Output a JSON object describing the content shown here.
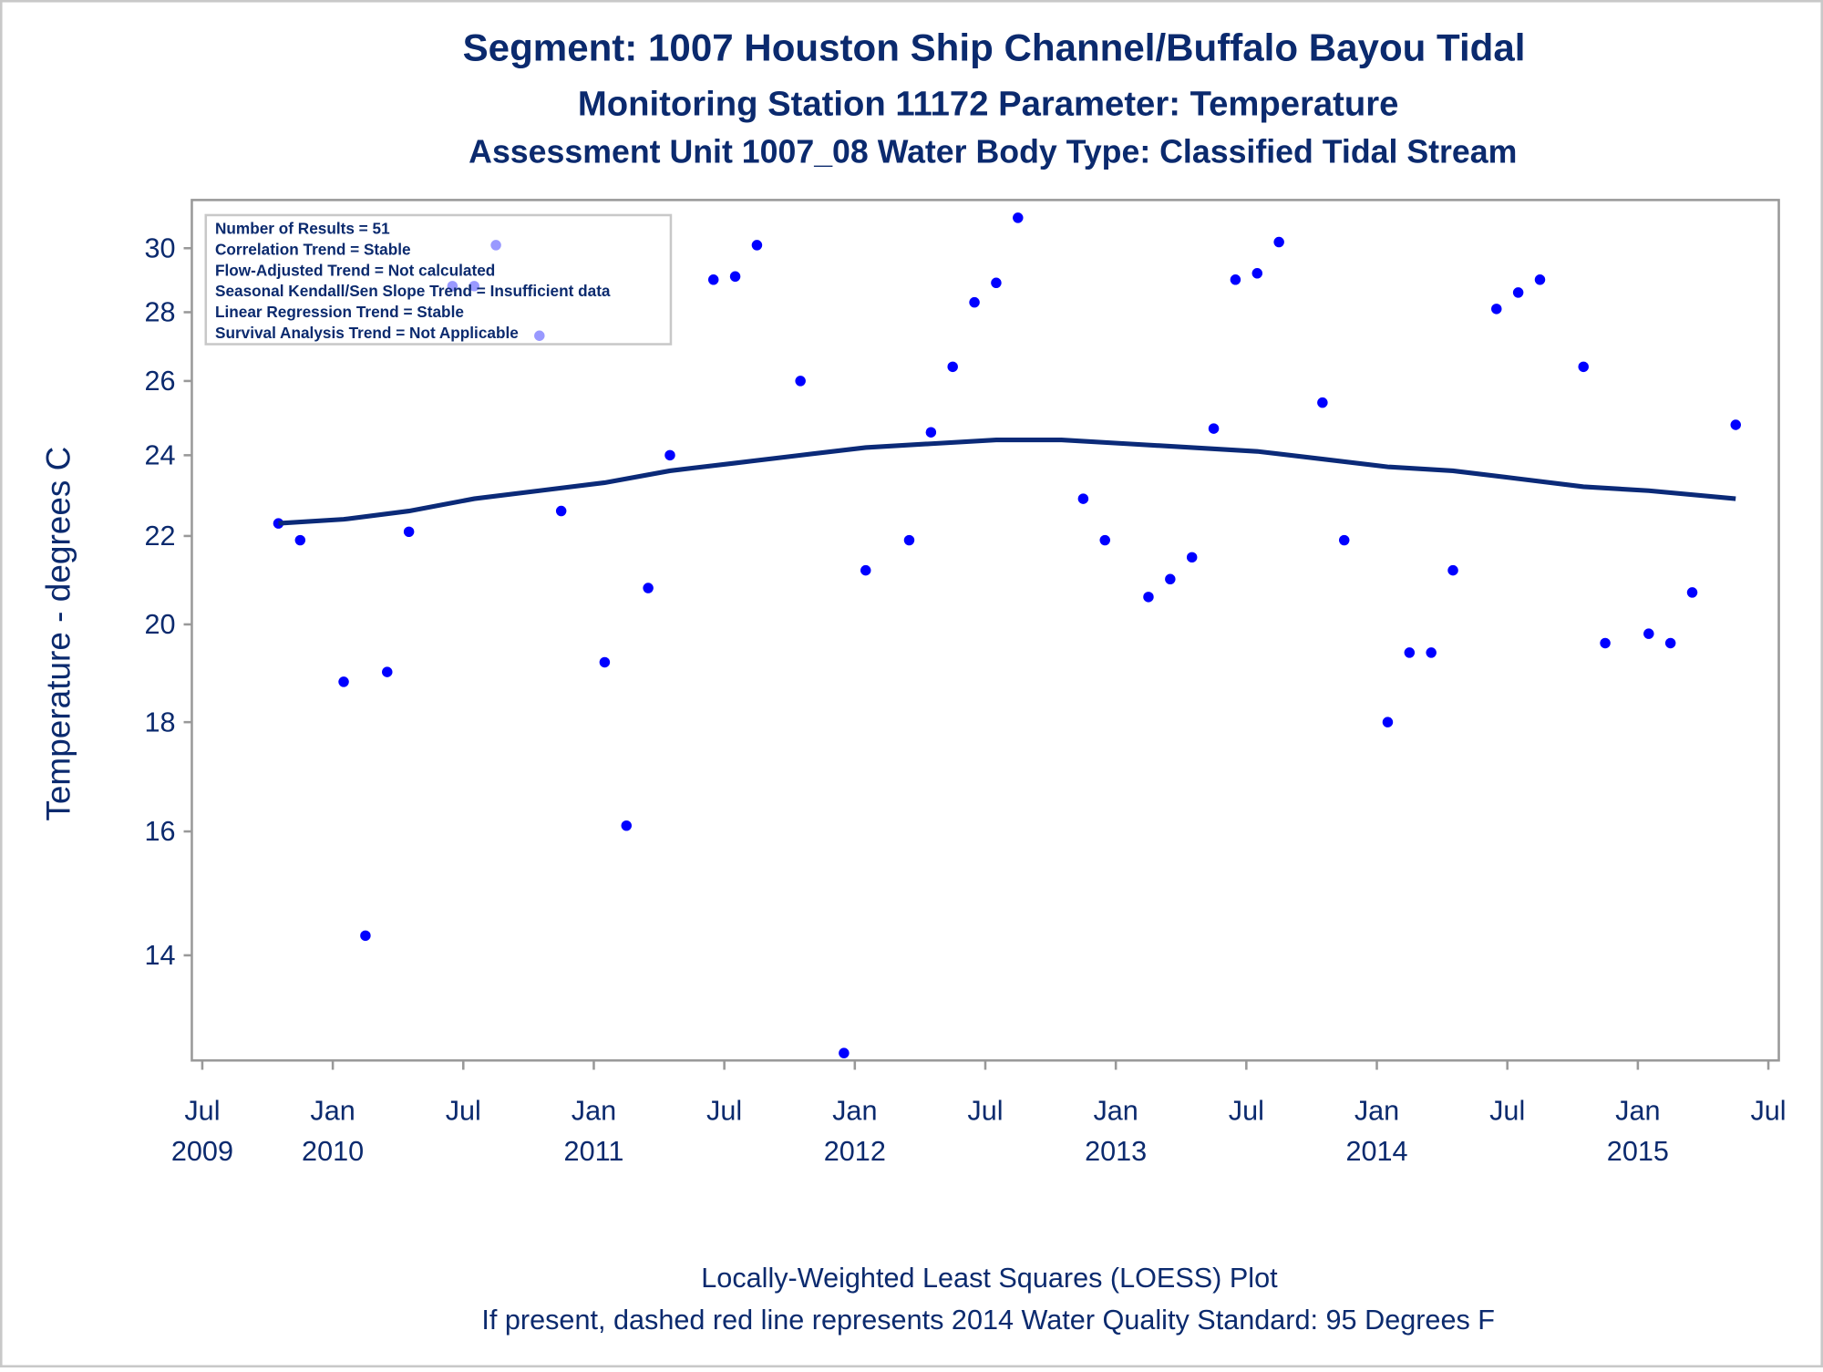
{
  "chart_data": {
    "type": "scatter",
    "titles": [
      "Segment: 1007  Houston Ship Channel/Buffalo Bayou Tidal",
      "Monitoring Station 11172 Parameter: Temperature",
      "Assessment Unit 1007_08   Water Body Type: Classified Tidal Stream"
    ],
    "y_label": "Temperature - degrees C",
    "annotations": [
      "Number of Results = 51",
      "Correlation Trend = Stable",
      "Flow-Adjusted Trend = Not calculated",
      "Seasonal Kendall/Sen Slope Trend = Insufficient data",
      "Linear Regression Trend = Stable",
      "Survival Analysis Trend = Not Applicable"
    ],
    "footnotes": [
      "Locally-Weighted Least Squares (LOESS) Plot",
      "If present, dashed red line represents 2014 Water Quality Standard: 95   Degrees F"
    ],
    "y_scale": "log",
    "ylim": [
      12.5,
      31.6
    ],
    "yticks": [
      14,
      16,
      18,
      20,
      22,
      24,
      26,
      28,
      30
    ],
    "xlim": [
      "2009-07",
      "2015-07"
    ],
    "xticks": [
      {
        "value": "2009-07",
        "label": [
          "Jul",
          "2009"
        ]
      },
      {
        "value": "2010-01",
        "label": [
          "Jan",
          "2010"
        ]
      },
      {
        "value": "2010-07",
        "label": [
          "Jul"
        ]
      },
      {
        "value": "2011-01",
        "label": [
          "Jan",
          "2011"
        ]
      },
      {
        "value": "2011-07",
        "label": [
          "Jul"
        ]
      },
      {
        "value": "2012-01",
        "label": [
          "Jan",
          "2012"
        ]
      },
      {
        "value": "2012-07",
        "label": [
          "Jul"
        ]
      },
      {
        "value": "2013-01",
        "label": [
          "Jan",
          "2013"
        ]
      },
      {
        "value": "2013-07",
        "label": [
          "Jul"
        ]
      },
      {
        "value": "2014-01",
        "label": [
          "Jan",
          "2014"
        ]
      },
      {
        "value": "2014-07",
        "label": [
          "Jul"
        ]
      },
      {
        "value": "2015-01",
        "label": [
          "Jan",
          "2015"
        ]
      },
      {
        "value": "2015-07",
        "label": [
          "Jul"
        ]
      }
    ],
    "series": [
      {
        "type": "scatter",
        "color": "#0000ff",
        "x": [
          "2009-10",
          "2009-11",
          "2010-01",
          "2010-02",
          "2010-03",
          "2010-04",
          "2010-06",
          "2010-07",
          "2010-08",
          "2010-10",
          "2010-11",
          "2011-01",
          "2011-02",
          "2011-03",
          "2011-04",
          "2011-06",
          "2011-07",
          "2011-08",
          "2011-10",
          "2011-12",
          "2012-01",
          "2012-03",
          "2012-04",
          "2012-05",
          "2012-06",
          "2012-07",
          "2012-08",
          "2012-11",
          "2012-12",
          "2013-02",
          "2013-03",
          "2013-04",
          "2013-05",
          "2013-06",
          "2013-07",
          "2013-08",
          "2013-10",
          "2013-11",
          "2014-01",
          "2014-02",
          "2014-03",
          "2014-04",
          "2014-06",
          "2014-07",
          "2014-08",
          "2014-10",
          "2014-11",
          "2015-01",
          "2015-02",
          "2015-03",
          "2015-05"
        ],
        "values": [
          22.3,
          21.9,
          18.8,
          14.3,
          19.0,
          22.1,
          28.8,
          28.8,
          30.1,
          27.3,
          22.6,
          19.2,
          16.1,
          20.8,
          24.0,
          29.0,
          29.1,
          30.1,
          26.0,
          12.6,
          21.2,
          21.9,
          24.6,
          26.4,
          28.3,
          28.9,
          31.0,
          22.9,
          21.9,
          20.6,
          21.0,
          21.5,
          24.7,
          29.0,
          29.2,
          30.2,
          25.4,
          21.9,
          18.0,
          19.4,
          19.4,
          21.2,
          28.1,
          28.6,
          29.0,
          26.4,
          19.6,
          19.8,
          19.6,
          20.7,
          24.8
        ]
      },
      {
        "type": "line",
        "color": "#0b2a78",
        "x": [
          "2009-10",
          "2010-01",
          "2010-04",
          "2010-07",
          "2010-10",
          "2011-01",
          "2011-04",
          "2011-07",
          "2011-10",
          "2012-01",
          "2012-04",
          "2012-07",
          "2012-10",
          "2013-01",
          "2013-04",
          "2013-07",
          "2013-10",
          "2014-01",
          "2014-04",
          "2014-07",
          "2014-10",
          "2015-01",
          "2015-05"
        ],
        "values": [
          22.3,
          22.4,
          22.6,
          22.9,
          23.1,
          23.3,
          23.6,
          23.8,
          24.0,
          24.2,
          24.3,
          24.4,
          24.4,
          24.3,
          24.2,
          24.1,
          23.9,
          23.7,
          23.6,
          23.4,
          23.2,
          23.1,
          22.9
        ]
      }
    ]
  }
}
